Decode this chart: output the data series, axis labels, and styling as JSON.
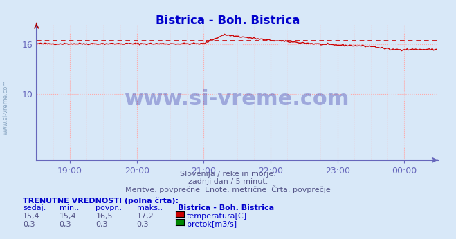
{
  "title": "Bistrica - Boh. Bistrica",
  "title_color": "#0000cc",
  "bg_color": "#d8e8f8",
  "plot_bg_color": "#d8e8f8",
  "axis_color": "#6666bb",
  "grid_color": "#ffaaaa",
  "xlabel_texts": [
    "19:00",
    "20:00",
    "21:00",
    "22:00",
    "23:00",
    "00:00"
  ],
  "ylabel_ticks": [
    10,
    16
  ],
  "ylim": [
    2.0,
    18.5
  ],
  "xlim": [
    0,
    288
  ],
  "avg_line_value": 16.5,
  "avg_line_color": "#cc0000",
  "temp_line_color": "#cc0000",
  "flow_line_color": "#008800",
  "watermark_text": "www.si-vreme.com",
  "watermark_color": "#3333aa",
  "subtitle1": "Slovenija / reke in morje.",
  "subtitle2": "zadnji dan / 5 minut.",
  "subtitle3": "Meritve: povprečne  Enote: metrične  Črta: povprečje",
  "subtitle_color": "#555588",
  "footer_bold": "TRENUTNE VREDNOSTI (polna črta):",
  "footer_headers": [
    "sedaj:",
    "min.:",
    "povpr.:",
    "maks.:",
    "Bistrica - Boh. Bistrica"
  ],
  "footer_row1": [
    "15,4",
    "15,4",
    "16,5",
    "17,2",
    "temperatura[C]"
  ],
  "footer_row2": [
    "0,3",
    "0,3",
    "0,3",
    "0,3",
    "pretok[m3/s]"
  ],
  "temp_color_swatch": "#cc0000",
  "flow_color_swatch": "#008800",
  "left_label": "www.si-vreme.com",
  "left_label_color": "#6688aa"
}
